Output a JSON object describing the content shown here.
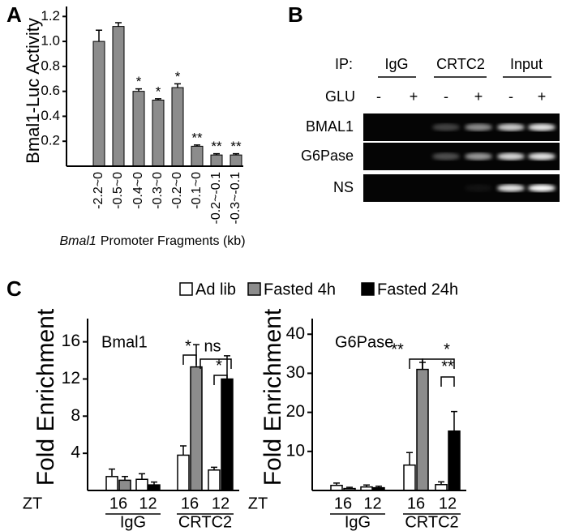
{
  "panel_labels": [
    "A",
    "B",
    "C"
  ],
  "chart_data": [
    {
      "type": "bar",
      "ylabel": "Bmal1-Luc Activity",
      "xlabel_italic": "Bmal1",
      "xlabel": "Promoter Fragments (kb)",
      "categories": [
        "-2.2~0",
        "-0.5~0",
        "-0.4~0",
        "-0.3~0",
        "-0.2~0",
        "-0.1~0",
        "-0.2~-0.1",
        "-0.3~-0.1"
      ],
      "values": [
        1.0,
        1.12,
        0.6,
        0.53,
        0.63,
        0.16,
        0.09,
        0.09
      ],
      "errors": [
        0.09,
        0.03,
        0.02,
        0.01,
        0.03,
        0.01,
        0.01,
        0.01
      ],
      "annotations": [
        null,
        null,
        "*",
        "*",
        "*",
        "**",
        "**",
        "**"
      ],
      "color": "#8c8c8c",
      "ylim": [
        0,
        1.28
      ],
      "yticks": [
        0.2,
        0.4,
        0.6,
        0.8,
        {
          "value": 1,
          "label": "1.0"
        },
        1.2
      ]
    },
    {
      "type": "grouped-bar",
      "title": "Bmal1",
      "ylabel": "Fold Enrichment",
      "x_label": "ZT",
      "categories": [
        "16",
        "12",
        "16",
        "12"
      ],
      "groups": [
        "IgG",
        "CRTC2"
      ],
      "series": [
        {
          "name": "Ad lib",
          "color": "#ffffff",
          "values": [
            1.5,
            1.2,
            3.8,
            2.2
          ],
          "errors": [
            0.8,
            0.6,
            1.0,
            0.3
          ]
        },
        {
          "name": "Fasted 4h",
          "color": "#8c8c8c",
          "values": [
            1.1,
            null,
            13.3,
            null
          ],
          "errors": [
            0.4,
            null,
            2.4,
            null
          ]
        },
        {
          "name": "Fasted 24h",
          "color": "#000000",
          "values": [
            null,
            0.6,
            null,
            12.0
          ],
          "errors": [
            null,
            0.3,
            null,
            2.5
          ]
        }
      ],
      "annotations": [
        "*",
        "ns",
        "*"
      ],
      "ylim": [
        0,
        18.5
      ],
      "yticks": [
        4,
        8,
        12,
        16
      ]
    },
    {
      "type": "grouped-bar",
      "title": "G6Pase",
      "ylabel": "Fold Enrichment",
      "x_label": "ZT",
      "categories": [
        "16",
        "12",
        "16",
        "12"
      ],
      "groups": [
        "IgG",
        "CRTC2"
      ],
      "series": [
        {
          "color": "#ffffff",
          "values": [
            1.3,
            0.9,
            6.5,
            1.5
          ],
          "errors": [
            0.6,
            0.5,
            3.2,
            0.7
          ]
        },
        {
          "color": "#8c8c8c",
          "values": [
            0.5,
            null,
            31,
            null
          ],
          "errors": [
            0.3,
            null,
            1.8,
            null
          ]
        },
        {
          "color": "#000000",
          "values": [
            null,
            0.7,
            null,
            15.2
          ],
          "errors": [
            null,
            0.4,
            null,
            5
          ]
        }
      ],
      "annotations": [
        "**",
        "*",
        "**"
      ],
      "ylim": [
        0,
        44
      ],
      "yticks": [
        10,
        20,
        30,
        40
      ]
    }
  ],
  "gel": {
    "ip_label": "IP:",
    "ip_groups": [
      "IgG",
      "CRTC2",
      "Input"
    ],
    "treatment_label": "GLU",
    "treatments": [
      "-",
      "+",
      "-",
      "+",
      "-",
      "+"
    ],
    "rows": [
      "BMAL1",
      "G6Pase",
      "NS"
    ]
  }
}
